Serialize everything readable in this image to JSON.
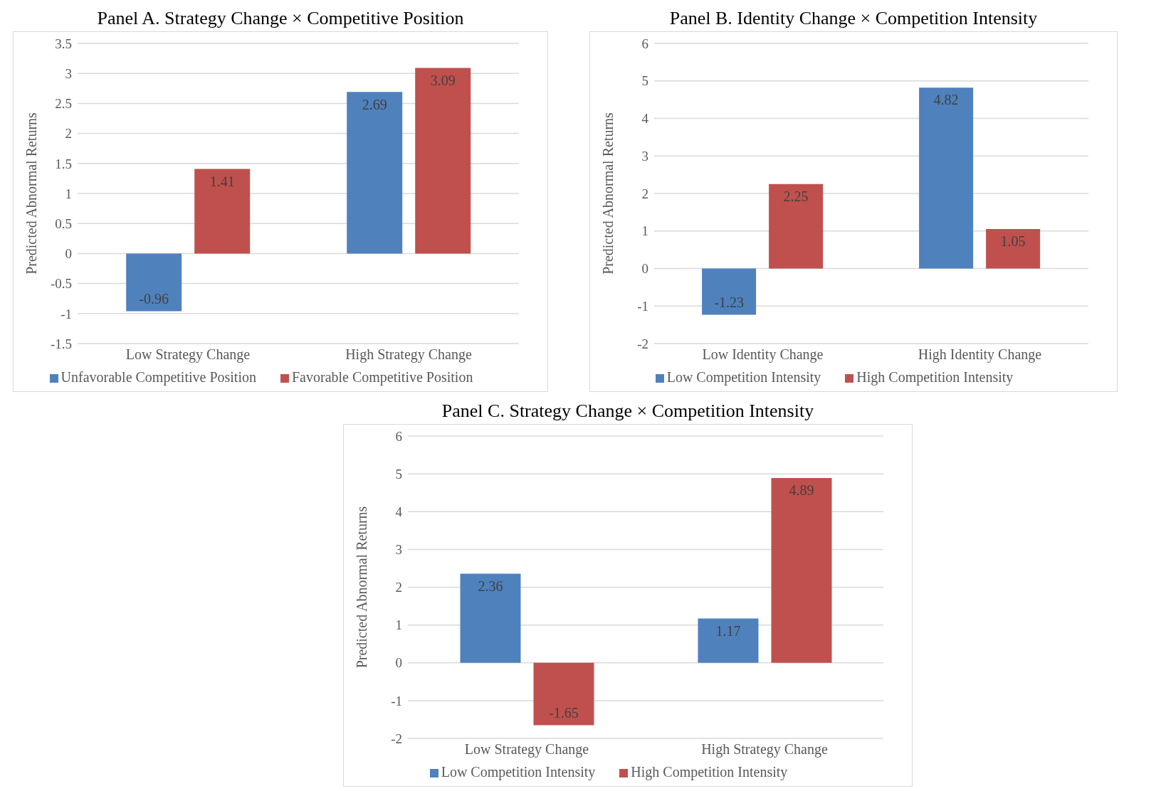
{
  "chart_data": [
    {
      "type": "bar",
      "title": "Panel A. Strategy Change × Competitive Position",
      "ylabel": "Predicted Abnormal Returns",
      "categories": [
        "Low Strategy Change",
        "High Strategy Change"
      ],
      "series": [
        {
          "name": "Unfavorable Competitive Position",
          "color": "#4f81bd",
          "values": [
            -0.96,
            2.69
          ]
        },
        {
          "name": "Favorable Competitive Position",
          "color": "#c0504d",
          "values": [
            1.41,
            3.09
          ]
        }
      ],
      "ylim": [
        -1.5,
        3.5
      ],
      "yticks": [
        -1.5,
        -1,
        -0.5,
        0,
        0.5,
        1,
        1.5,
        2,
        2.5,
        3,
        3.5
      ],
      "grid": "y",
      "legend": "bottom",
      "data_labels": true
    },
    {
      "type": "bar",
      "title": "Panel B. Identity Change × Competition Intensity",
      "ylabel": "Predicted Abnormal Returns",
      "categories": [
        "Low Identity Change",
        "High Identity Change"
      ],
      "series": [
        {
          "name": "Low Competition Intensity",
          "color": "#4f81bd",
          "values": [
            -1.23,
            4.82
          ]
        },
        {
          "name": "High Competition Intensity",
          "color": "#c0504d",
          "values": [
            2.25,
            1.05
          ]
        }
      ],
      "ylim": [
        -2,
        6
      ],
      "yticks": [
        -2,
        -1,
        0,
        1,
        2,
        3,
        4,
        5,
        6
      ],
      "grid": "y",
      "legend": "bottom",
      "data_labels": true
    },
    {
      "type": "bar",
      "title": "Panel C. Strategy Change × Competition Intensity",
      "ylabel": "Predicted Abnormal Returns",
      "categories": [
        "Low Strategy Change",
        "High Strategy Change"
      ],
      "series": [
        {
          "name": "Low Competition Intensity",
          "color": "#4f81bd",
          "values": [
            2.36,
            1.17
          ]
        },
        {
          "name": "High Competition Intensity",
          "color": "#c0504d",
          "values": [
            -1.65,
            4.89
          ]
        }
      ],
      "ylim": [
        -2,
        6
      ],
      "yticks": [
        -2,
        -1,
        0,
        1,
        2,
        3,
        4,
        5,
        6
      ],
      "grid": "y",
      "legend": "bottom",
      "data_labels": true
    }
  ]
}
